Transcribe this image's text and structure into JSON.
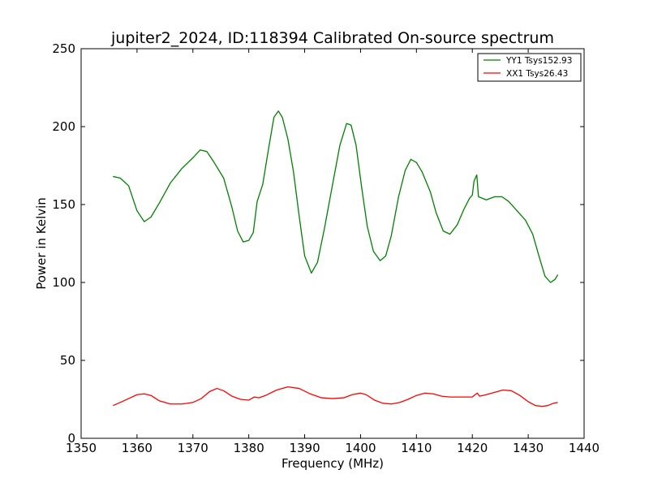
{
  "chart_data": {
    "type": "line",
    "title": "jupiter2_2024, ID:118394 Calibrated On-source spectrum",
    "xlabel": "Frequency (MHz)",
    "ylabel": "Power in Kelvin",
    "xlim": [
      1350,
      1440
    ],
    "ylim": [
      0,
      250
    ],
    "xticks": [
      1350,
      1360,
      1370,
      1380,
      1390,
      1400,
      1410,
      1420,
      1430,
      1440
    ],
    "yticks": [
      0,
      50,
      100,
      150,
      200,
      250
    ],
    "grid": false,
    "legend_position": "top-right",
    "series": [
      {
        "name": "YY1 Tsys152.93",
        "color": "#008000",
        "points": [
          [
            1355.7,
            168
          ],
          [
            1357,
            167
          ],
          [
            1358.5,
            162
          ],
          [
            1360,
            146
          ],
          [
            1361.3,
            139
          ],
          [
            1362.5,
            142
          ],
          [
            1364,
            151
          ],
          [
            1366,
            164
          ],
          [
            1368,
            173
          ],
          [
            1370,
            180
          ],
          [
            1371.3,
            185
          ],
          [
            1372.5,
            184
          ],
          [
            1373.8,
            177
          ],
          [
            1375.5,
            167
          ],
          [
            1377,
            148
          ],
          [
            1378,
            133
          ],
          [
            1379,
            126
          ],
          [
            1380,
            127
          ],
          [
            1380.8,
            132
          ],
          [
            1381.5,
            152
          ],
          [
            1382.5,
            163
          ],
          [
            1383.5,
            185
          ],
          [
            1384.5,
            206
          ],
          [
            1385.3,
            210
          ],
          [
            1386,
            206
          ],
          [
            1387,
            192
          ],
          [
            1388,
            171
          ],
          [
            1389,
            143
          ],
          [
            1390,
            117
          ],
          [
            1391.2,
            106
          ],
          [
            1392.3,
            113
          ],
          [
            1393.5,
            134
          ],
          [
            1395,
            163
          ],
          [
            1396.3,
            188
          ],
          [
            1397.5,
            202
          ],
          [
            1398.3,
            201
          ],
          [
            1399.2,
            188
          ],
          [
            1400.2,
            161
          ],
          [
            1401.2,
            136
          ],
          [
            1402.3,
            120
          ],
          [
            1403.5,
            114
          ],
          [
            1404.5,
            117
          ],
          [
            1405.5,
            130
          ],
          [
            1406.8,
            155
          ],
          [
            1408,
            172
          ],
          [
            1409,
            179
          ],
          [
            1410,
            177
          ],
          [
            1411,
            171
          ],
          [
            1412.5,
            158
          ],
          [
            1413.5,
            145
          ],
          [
            1414.8,
            133
          ],
          [
            1416,
            131
          ],
          [
            1417.3,
            137
          ],
          [
            1418.5,
            147
          ],
          [
            1419.5,
            154
          ],
          [
            1420,
            156
          ],
          [
            1420.3,
            165
          ],
          [
            1420.8,
            169
          ],
          [
            1421.1,
            155
          ],
          [
            1422.5,
            153
          ],
          [
            1424,
            155
          ],
          [
            1425.3,
            155
          ],
          [
            1426.5,
            152
          ],
          [
            1428,
            146
          ],
          [
            1429.5,
            140
          ],
          [
            1430.8,
            131
          ],
          [
            1432,
            116
          ],
          [
            1433,
            104
          ],
          [
            1434,
            100
          ],
          [
            1434.8,
            102
          ],
          [
            1435.3,
            105
          ]
        ]
      },
      {
        "name": "XX1 Tsys26.43",
        "color": "#ff0000",
        "points": [
          [
            1355.7,
            21
          ],
          [
            1357,
            23
          ],
          [
            1358.5,
            25.5
          ],
          [
            1360,
            28
          ],
          [
            1361.3,
            28.5
          ],
          [
            1362.5,
            27.5
          ],
          [
            1364,
            24
          ],
          [
            1366,
            22
          ],
          [
            1368,
            22
          ],
          [
            1370,
            23
          ],
          [
            1371.5,
            25.5
          ],
          [
            1373,
            30
          ],
          [
            1374.3,
            32
          ],
          [
            1375.5,
            30.5
          ],
          [
            1377,
            27
          ],
          [
            1378.5,
            25
          ],
          [
            1380,
            24.5
          ],
          [
            1381,
            26.5
          ],
          [
            1381.8,
            26
          ],
          [
            1383,
            27.5
          ],
          [
            1385,
            31
          ],
          [
            1387,
            33
          ],
          [
            1389,
            32
          ],
          [
            1391,
            28.5
          ],
          [
            1393,
            26
          ],
          [
            1395,
            25.5
          ],
          [
            1397,
            26
          ],
          [
            1398.5,
            28
          ],
          [
            1400,
            29
          ],
          [
            1401,
            28
          ],
          [
            1402.5,
            24.5
          ],
          [
            1404,
            22.5
          ],
          [
            1405.5,
            22
          ],
          [
            1407,
            23
          ],
          [
            1408.5,
            25
          ],
          [
            1410,
            27.5
          ],
          [
            1411.5,
            29
          ],
          [
            1413,
            28.5
          ],
          [
            1414.5,
            27
          ],
          [
            1416,
            26.5
          ],
          [
            1418,
            26.5
          ],
          [
            1420,
            26.5
          ],
          [
            1420.5,
            28
          ],
          [
            1420.9,
            29
          ],
          [
            1421.3,
            27
          ],
          [
            1422.5,
            28
          ],
          [
            1424,
            29.5
          ],
          [
            1425.5,
            31
          ],
          [
            1427,
            30.5
          ],
          [
            1428.5,
            27.5
          ],
          [
            1430,
            23.5
          ],
          [
            1431.3,
            21
          ],
          [
            1432.5,
            20.5
          ],
          [
            1433.5,
            21
          ],
          [
            1434.5,
            22.5
          ],
          [
            1435.3,
            23
          ]
        ]
      }
    ]
  }
}
